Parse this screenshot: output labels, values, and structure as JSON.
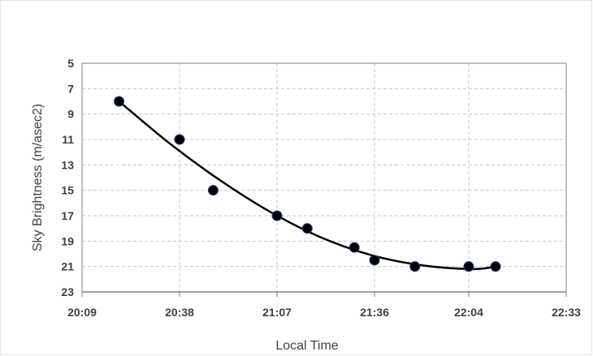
{
  "chart_data": {
    "type": "scatter",
    "title": "",
    "xlabel": "Local Time",
    "ylabel": "Sky Brightness (m/asec2)",
    "x_ticks": [
      "20:09",
      "20:38",
      "21:07",
      "21:36",
      "22:04",
      "22:33"
    ],
    "y_ticks": [
      5,
      7,
      9,
      11,
      13,
      15,
      17,
      19,
      21,
      23
    ],
    "ylim": [
      5,
      23
    ],
    "y_inverted": true,
    "xlim": [
      "20:09",
      "22:33"
    ],
    "grid": true,
    "legend": "none",
    "series": [
      {
        "marker": "circle",
        "color": "#000000",
        "points": [
          {
            "x": "20:20",
            "y": 8
          },
          {
            "x": "20:38",
            "y": 11
          },
          {
            "x": "20:48",
            "y": 15
          },
          {
            "x": "21:07",
            "y": 17
          },
          {
            "x": "21:16",
            "y": 18
          },
          {
            "x": "21:30",
            "y": 19.5
          },
          {
            "x": "21:36",
            "y": 20.5
          },
          {
            "x": "21:48",
            "y": 21
          },
          {
            "x": "22:04",
            "y": 21
          },
          {
            "x": "22:12",
            "y": 21
          }
        ]
      }
    ],
    "trendline": {
      "type": "polynomial",
      "color": "#000000",
      "points": [
        {
          "x": "20:20",
          "y": 8
        },
        {
          "x": "20:35",
          "y": 11.3
        },
        {
          "x": "20:50",
          "y": 14.2
        },
        {
          "x": "21:05",
          "y": 16.7
        },
        {
          "x": "21:20",
          "y": 18.7
        },
        {
          "x": "21:35",
          "y": 20.1
        },
        {
          "x": "21:50",
          "y": 20.9
        },
        {
          "x": "22:05",
          "y": 21.2
        },
        {
          "x": "22:12",
          "y": 21
        }
      ]
    },
    "colors": {
      "grid": "#c8c8c8",
      "axis": "#808080",
      "text": "#404040",
      "marker_edge": "#1f3a93"
    }
  }
}
